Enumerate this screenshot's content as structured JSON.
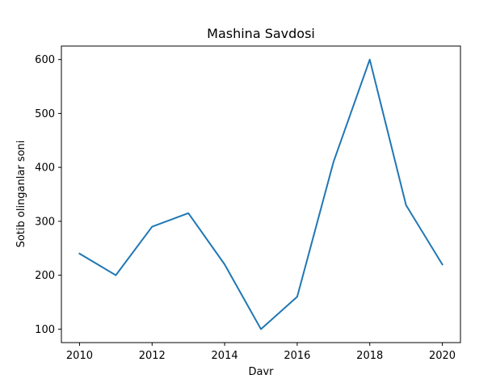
{
  "chart_data": {
    "type": "line",
    "title": "Mashina Savdosi",
    "xlabel": "Davr",
    "ylabel": "Sotib olinganlar soni",
    "x": [
      2010,
      2011,
      2012,
      2013,
      2014,
      2015,
      2016,
      2017,
      2018,
      2019,
      2020
    ],
    "series": [
      {
        "values": [
          240,
          200,
          290,
          315,
          220,
          100,
          160,
          410,
          600,
          330,
          220
        ],
        "color": "#1f77b4"
      }
    ],
    "xlim": [
      2009.5,
      2020.5
    ],
    "ylim": [
      75,
      625
    ],
    "xticks": [
      "2010",
      "2012",
      "2014",
      "2016",
      "2018",
      "2020"
    ],
    "yticks": [
      "100",
      "200",
      "300",
      "400",
      "500",
      "600"
    ],
    "grid": false,
    "legend": "none"
  }
}
